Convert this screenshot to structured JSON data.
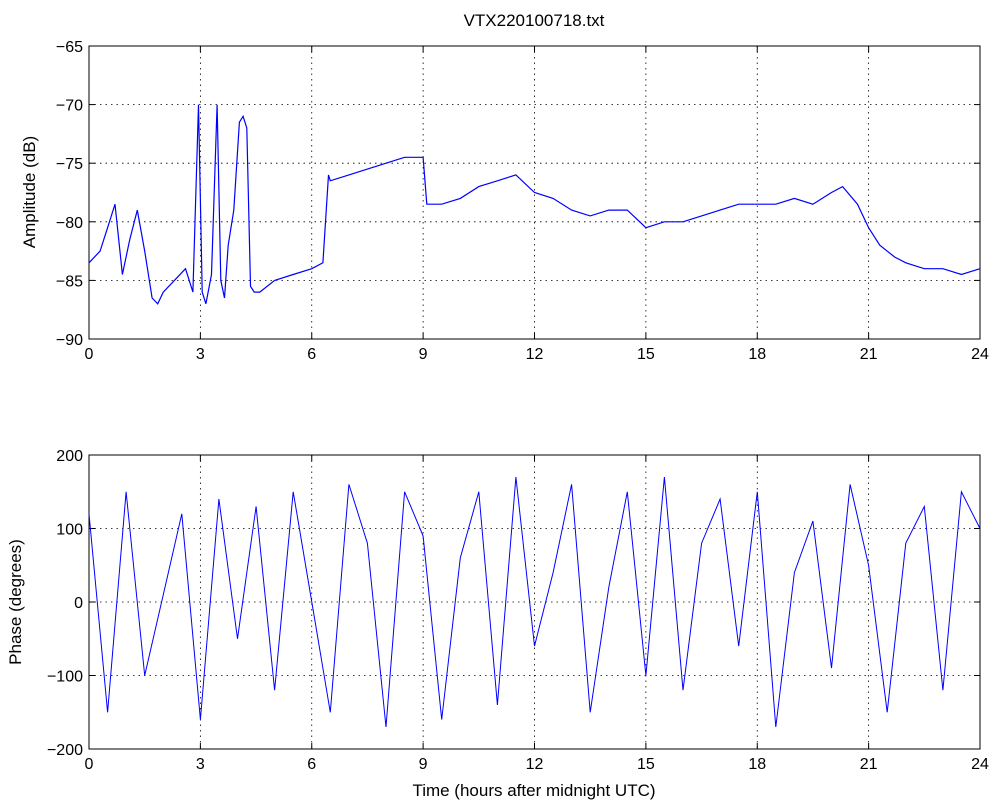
{
  "chart_data": [
    {
      "type": "line",
      "title": "VTX220100718.txt",
      "xlabel": "",
      "ylabel": "Amplitude (dB)",
      "xlim": [
        0,
        24
      ],
      "ylim": [
        -90,
        -65
      ],
      "xticks": [
        "0",
        "3",
        "6",
        "9",
        "12",
        "15",
        "18",
        "21",
        "24"
      ],
      "yticks": [
        "-65",
        "-70",
        "-75",
        "-80",
        "-85",
        "-90"
      ],
      "grid": true,
      "line_color": "#0000ff",
      "series": [
        {
          "x": [
            0,
            0.3,
            0.5,
            0.7,
            0.9,
            1.1,
            1.3,
            1.5,
            1.7,
            1.85,
            2.0,
            2.3,
            2.6,
            2.8,
            2.95,
            3.05,
            3.15,
            3.3,
            3.45,
            3.55,
            3.65,
            3.75,
            3.9,
            4.05,
            4.15,
            4.25,
            4.35,
            4.45,
            4.6,
            5.0,
            5.5,
            6.0,
            6.3,
            6.45,
            6.5,
            7.0,
            7.5,
            8.0,
            8.5,
            9.0,
            9.1,
            9.5,
            10.0,
            10.5,
            11.0,
            11.5,
            12.0,
            12.5,
            13.0,
            13.5,
            14.0,
            14.5,
            15.0,
            15.5,
            16.0,
            16.5,
            17.0,
            17.5,
            18.0,
            18.5,
            19.0,
            19.5,
            20.0,
            20.3,
            20.7,
            21.0,
            21.3,
            21.7,
            22.0,
            22.5,
            23.0,
            23.5,
            24.0
          ],
          "y": [
            -83.5,
            -82.5,
            -80.5,
            -78.5,
            -84.5,
            -81.5,
            -79,
            -82.5,
            -86.5,
            -87,
            -86,
            -85,
            -84,
            -86,
            -70,
            -86,
            -87,
            -84.5,
            -70,
            -85,
            -86.5,
            -82,
            -79,
            -71.5,
            -71,
            -72,
            -85.5,
            -86,
            -86,
            -85,
            -84.5,
            -84,
            -83.5,
            -76,
            -76.5,
            -76,
            -75.5,
            -75,
            -74.5,
            -74.5,
            -78.5,
            -78.5,
            -78,
            -77,
            -76.5,
            -76,
            -77.5,
            -78,
            -79,
            -79.5,
            -79,
            -79,
            -80.5,
            -80,
            -80,
            -79.5,
            -79,
            -78.5,
            -78.5,
            -78.5,
            -78,
            -78.5,
            -77.5,
            -77,
            -78.5,
            -80.5,
            -82,
            -83,
            -83.5,
            -84,
            -84,
            -84.5,
            -84
          ]
        }
      ]
    },
    {
      "type": "line",
      "title": "",
      "xlabel": "Time (hours after midnight UTC)",
      "ylabel": "Phase (degrees)",
      "xlim": [
        0,
        24
      ],
      "ylim": [
        -200,
        200
      ],
      "xticks": [
        "0",
        "3",
        "6",
        "9",
        "12",
        "15",
        "18",
        "21",
        "24"
      ],
      "yticks": [
        "200",
        "100",
        "0",
        "-100",
        "-200"
      ],
      "grid": true,
      "line_color": "#0000ff",
      "series": [
        {
          "x": [
            0,
            0.5,
            1.0,
            1.5,
            2.0,
            2.5,
            3.0,
            3.5,
            4.0,
            4.5,
            5.0,
            5.5,
            6.0,
            6.5,
            7.0,
            7.5,
            8.0,
            8.5,
            9.0,
            9.5,
            10.0,
            10.5,
            11.0,
            11.5,
            12.0,
            12.5,
            13.0,
            13.5,
            14.0,
            14.5,
            15.0,
            15.5,
            16.0,
            16.5,
            17.0,
            17.5,
            18.0,
            18.5,
            19.0,
            19.5,
            20.0,
            20.5,
            21.0,
            21.5,
            22.0,
            22.5,
            23.0,
            23.5,
            24.0
          ],
          "y": [
            120,
            -150,
            150,
            -100,
            10,
            120,
            -160,
            140,
            -50,
            130,
            -120,
            150,
            0,
            -150,
            160,
            80,
            -170,
            150,
            90,
            -160,
            60,
            150,
            -140,
            170,
            -60,
            40,
            160,
            -150,
            20,
            150,
            -100,
            170,
            -120,
            80,
            140,
            -60,
            150,
            -170,
            40,
            110,
            -90,
            160,
            50,
            -150,
            80,
            130,
            -120,
            150,
            100
          ]
        }
      ]
    }
  ]
}
